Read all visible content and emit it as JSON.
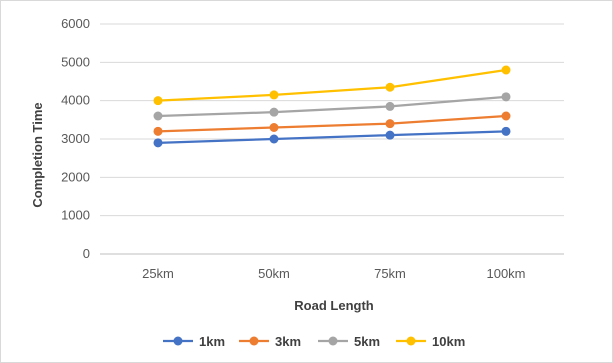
{
  "chart_data": {
    "type": "line",
    "title": "",
    "xlabel": "Road Length",
    "ylabel": "Completion Time",
    "categories": [
      "25km",
      "50km",
      "75km",
      "100km"
    ],
    "ylim": [
      0,
      6000
    ],
    "yticks": [
      "0",
      "1000",
      "2000",
      "3000",
      "4000",
      "5000",
      "6000"
    ],
    "grid": "horizontal",
    "legend_position": "bottom",
    "series": [
      {
        "name": "1km",
        "color": "#4472c4",
        "values": [
          2900,
          3000,
          3100,
          3200
        ]
      },
      {
        "name": "3km",
        "color": "#ed7d31",
        "values": [
          3200,
          3300,
          3400,
          3600
        ]
      },
      {
        "name": "5km",
        "color": "#a5a5a5",
        "values": [
          3600,
          3700,
          3850,
          4100
        ]
      },
      {
        "name": "10km",
        "color": "#ffc000",
        "values": [
          4000,
          4150,
          4350,
          4800
        ]
      }
    ]
  }
}
